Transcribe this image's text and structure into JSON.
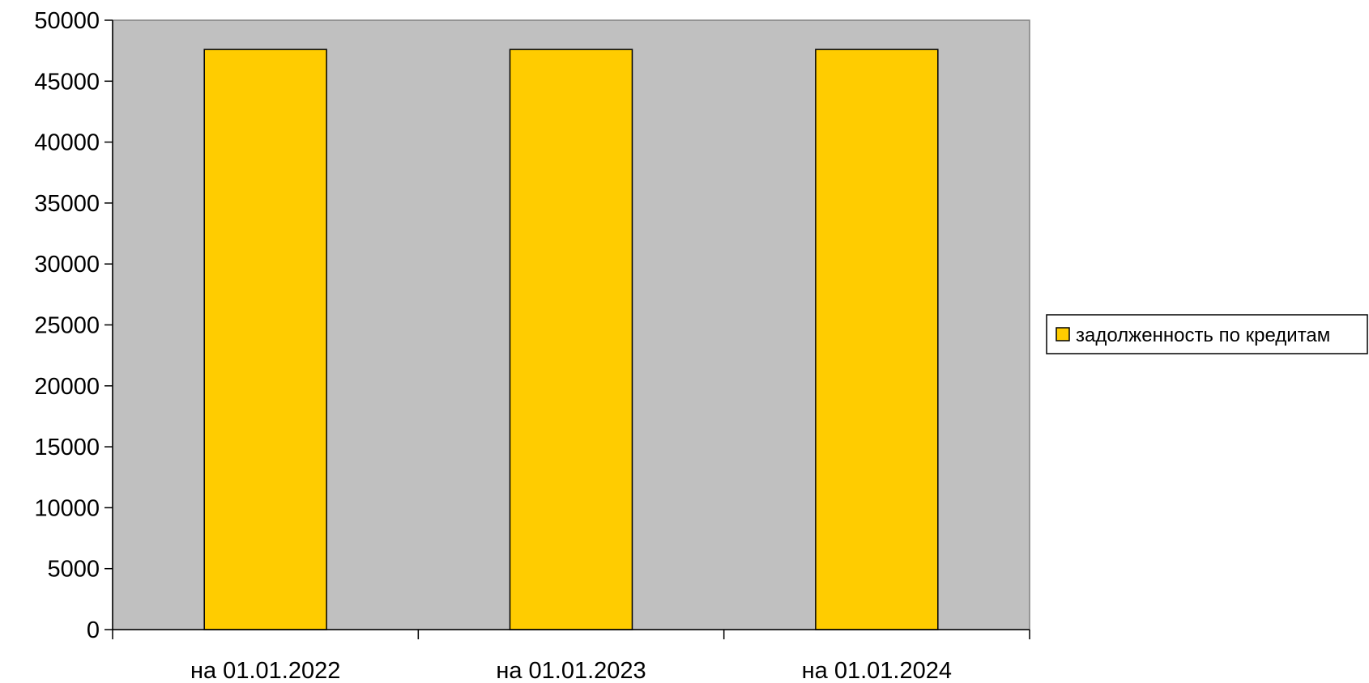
{
  "chart_data": {
    "type": "bar",
    "categories": [
      "на 01.01.2022",
      "на 01.01.2023",
      "на 01.01.2024"
    ],
    "series": [
      {
        "name": "задолженность по кредитам",
        "values": [
          47600,
          47600,
          47600
        ],
        "color": "#FFCC00"
      }
    ],
    "title": "",
    "xlabel": "",
    "ylabel": "",
    "ylim": [
      0,
      50000
    ],
    "yticks": [
      0,
      5000,
      10000,
      15000,
      20000,
      25000,
      30000,
      35000,
      40000,
      45000,
      50000
    ],
    "grid": false,
    "legend_position": "right",
    "plot_background": "#C0C0C0",
    "bar_border_color": "#000000"
  }
}
